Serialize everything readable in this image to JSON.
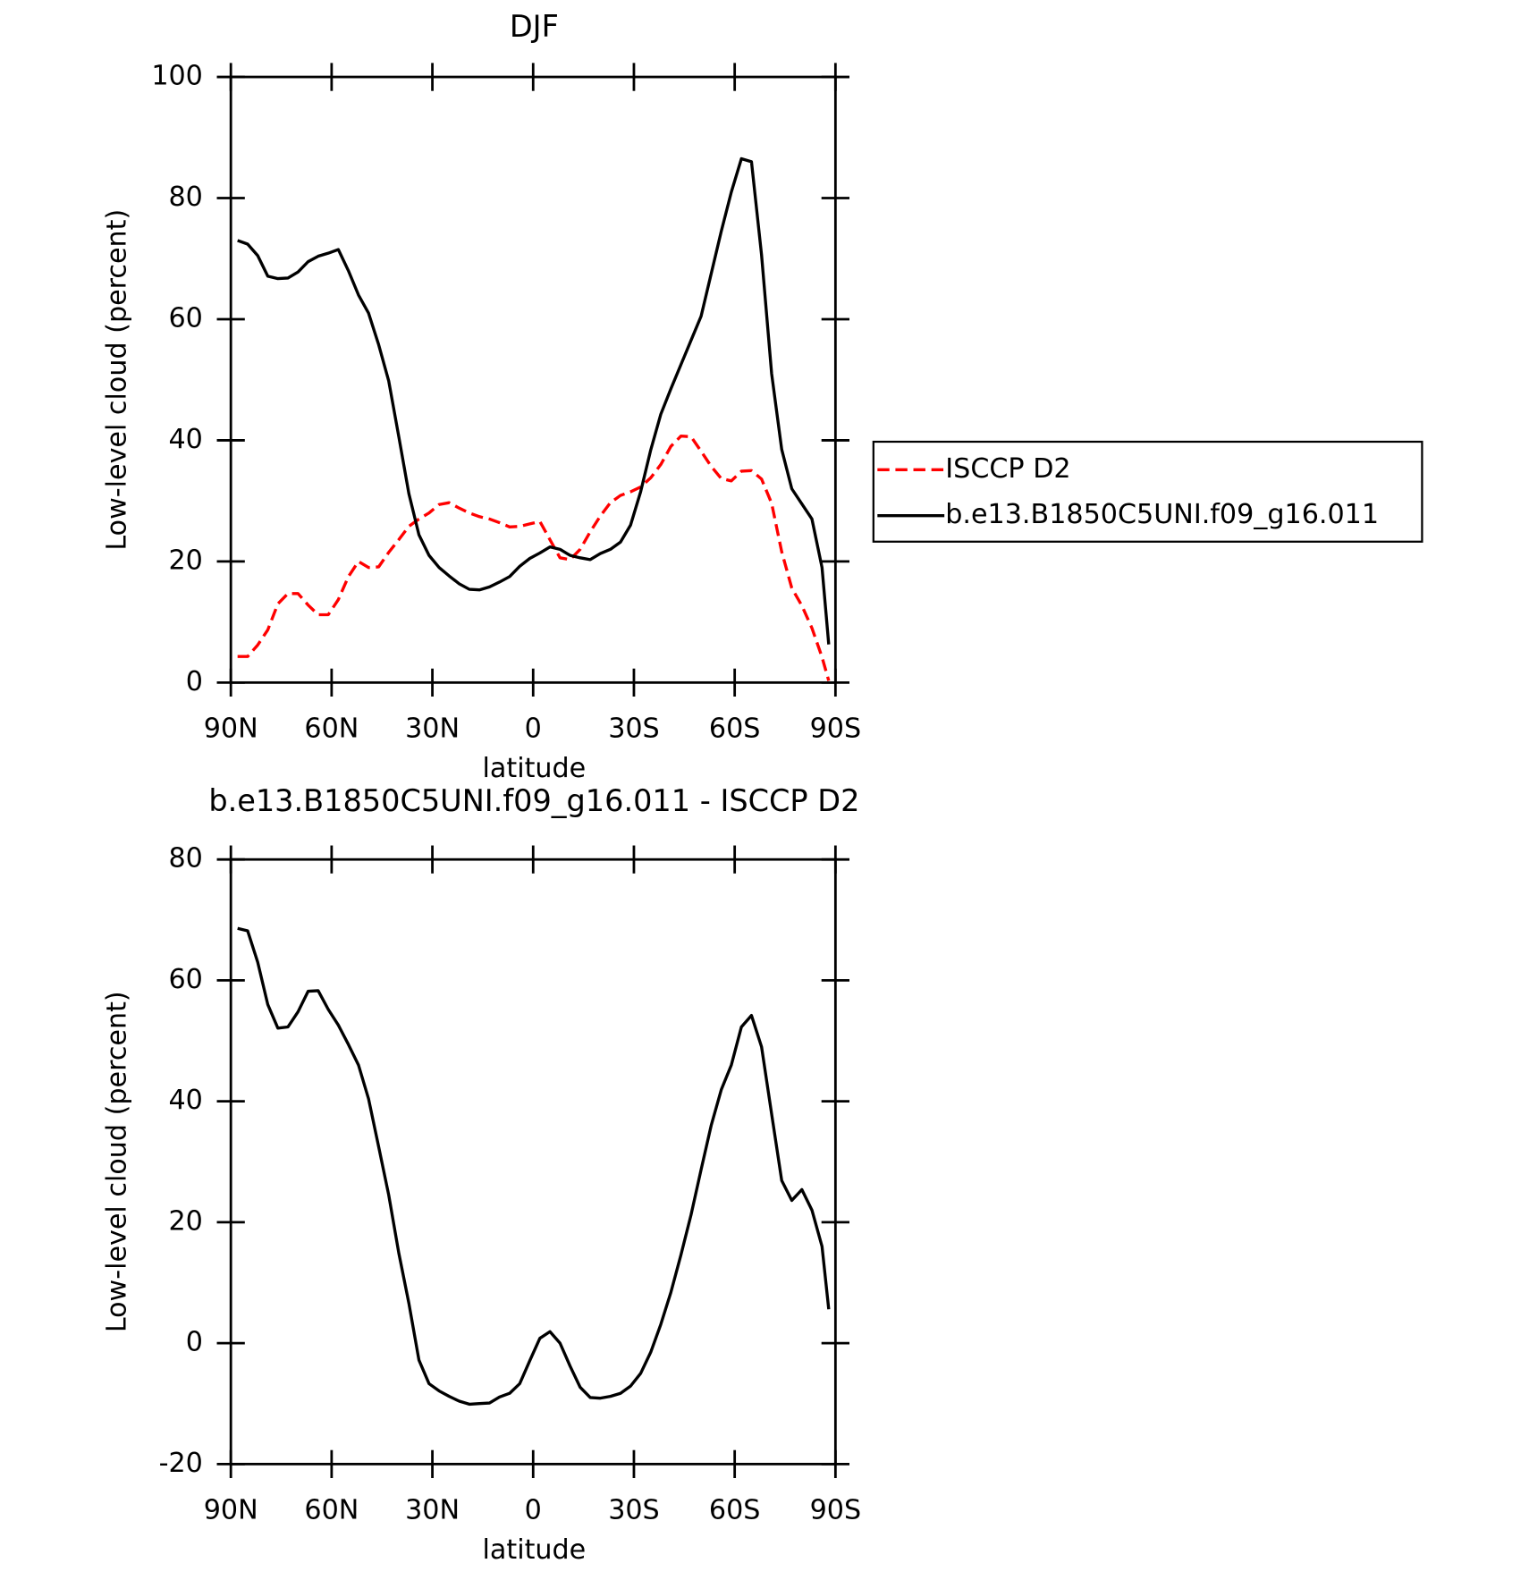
{
  "chart_data": [
    {
      "type": "line",
      "title": "DJF",
      "xlabel": "latitude",
      "ylabel": "Low-level cloud (percent)",
      "x": [
        88,
        85,
        82,
        79,
        76,
        73,
        70,
        67,
        64,
        61,
        58,
        55,
        52,
        49,
        46,
        43,
        40,
        37,
        34,
        31,
        28,
        25,
        22,
        19,
        16,
        13,
        10,
        7,
        4,
        1,
        -2,
        -5,
        -8,
        -11,
        -14,
        -17,
        -20,
        -23,
        -26,
        -29,
        -32,
        -35,
        -38,
        -41,
        -44,
        -47,
        -50,
        -53,
        -56,
        -59,
        -62,
        -65,
        -68,
        -71,
        -74,
        -77,
        -80,
        -83,
        -86,
        -88
      ],
      "series": [
        {
          "name": "ISCCP D2",
          "color": "#ff0000",
          "linestyle": "dashed",
          "values": [
            4.3,
            4.3,
            6.2,
            8.7,
            13,
            14.7,
            14.7,
            12.8,
            11.2,
            11.2,
            13.7,
            17.5,
            20,
            19,
            19.1,
            21.5,
            23.6,
            25.8,
            27,
            28,
            29.4,
            29.7,
            28.8,
            28,
            27.4,
            27,
            26.4,
            25.7,
            25.8,
            26.2,
            26.6,
            23.6,
            20.6,
            20.3,
            22,
            24.9,
            27.5,
            29.7,
            30.9,
            31.5,
            32.3,
            33.8,
            36,
            39,
            40.7,
            40.6,
            38.2,
            35.7,
            33.7,
            33.3,
            34.9,
            35,
            33.6,
            29.6,
            21.6,
            15.6,
            12.7,
            9,
            4.2,
            0.3
          ]
        },
        {
          "name": "b.e13.B1850C5UNI.f09_g16.011",
          "color": "#000000",
          "linestyle": "solid",
          "values": [
            73,
            72.4,
            70.5,
            67.1,
            66.7,
            66.8,
            67.8,
            69.5,
            70.4,
            70.9,
            71.5,
            68,
            64,
            61,
            55.8,
            49.8,
            40.6,
            31.2,
            24.4,
            21,
            19,
            17.6,
            16.3,
            15.4,
            15.3,
            15.8,
            16.6,
            17.5,
            19.2,
            20.5,
            21.4,
            22.4,
            22,
            21,
            20.6,
            20.3,
            21.3,
            22,
            23.2,
            26,
            31.5,
            38.4,
            44.3,
            48.5,
            52.5,
            56.5,
            60.5,
            67.5,
            74.5,
            81,
            86.5,
            86,
            70.6,
            51,
            38.5,
            32,
            29.5,
            27,
            19,
            6.3
          ]
        }
      ],
      "xlim": [
        90,
        -90
      ],
      "xticks": [
        {
          "value": 90,
          "label": "90N"
        },
        {
          "value": 60,
          "label": "60N"
        },
        {
          "value": 30,
          "label": "30N"
        },
        0,
        {
          "value": -30,
          "label": "30S"
        },
        {
          "value": -60,
          "label": "60S"
        },
        {
          "value": -90,
          "label": "90S"
        }
      ],
      "ylim": [
        0,
        100
      ],
      "yticks": [
        0,
        20,
        40,
        60,
        80,
        100
      ],
      "legend": "right"
    },
    {
      "type": "line",
      "title": "b.e13.B1850C5UNI.f09_g16.011 - ISCCP D2",
      "xlabel": "latitude",
      "ylabel": "Low-level cloud (percent)",
      "x": [
        88,
        85,
        82,
        79,
        76,
        73,
        70,
        67,
        64,
        61,
        58,
        55,
        52,
        49,
        46,
        43,
        40,
        37,
        34,
        31,
        28,
        25,
        22,
        19,
        16,
        13,
        10,
        7,
        4,
        1,
        -2,
        -5,
        -8,
        -11,
        -14,
        -17,
        -20,
        -23,
        -26,
        -29,
        -32,
        -35,
        -38,
        -41,
        -44,
        -47,
        -50,
        -53,
        -56,
        -59,
        -62,
        -65,
        -68,
        -71,
        -74,
        -77,
        -80,
        -83,
        -86,
        -88
      ],
      "series": [
        {
          "color": "#000000",
          "linestyle": "solid",
          "values": [
            68.6,
            68.2,
            63,
            56,
            52.1,
            52.3,
            54.8,
            58.2,
            58.3,
            55.2,
            52.6,
            49.4,
            46,
            40.4,
            32.5,
            24.5,
            14.9,
            6.6,
            -2.8,
            -6.7,
            -7.9,
            -8.8,
            -9.6,
            -10.1,
            -10,
            -9.9,
            -8.9,
            -8.3,
            -6.7,
            -2.9,
            0.8,
            1.9,
            0,
            -3.8,
            -7.3,
            -9,
            -9.1,
            -8.8,
            -8.3,
            -7.1,
            -5,
            -1.5,
            3.1,
            8.4,
            14.6,
            21.2,
            28.7,
            36,
            41.9,
            46,
            52.3,
            54.2,
            49,
            37.9,
            26.9,
            23.6,
            25.4,
            22,
            16,
            5.6
          ]
        }
      ],
      "xlim": [
        90,
        -90
      ],
      "xticks": [
        {
          "value": 90,
          "label": "90N"
        },
        {
          "value": 60,
          "label": "60N"
        },
        {
          "value": 30,
          "label": "30N"
        },
        0,
        {
          "value": -30,
          "label": "30S"
        },
        {
          "value": -60,
          "label": "60S"
        },
        {
          "value": -90,
          "label": "90S"
        }
      ],
      "ylim": [
        -20,
        80
      ],
      "yticks": [
        -20,
        0,
        20,
        40,
        60,
        80
      ]
    }
  ]
}
